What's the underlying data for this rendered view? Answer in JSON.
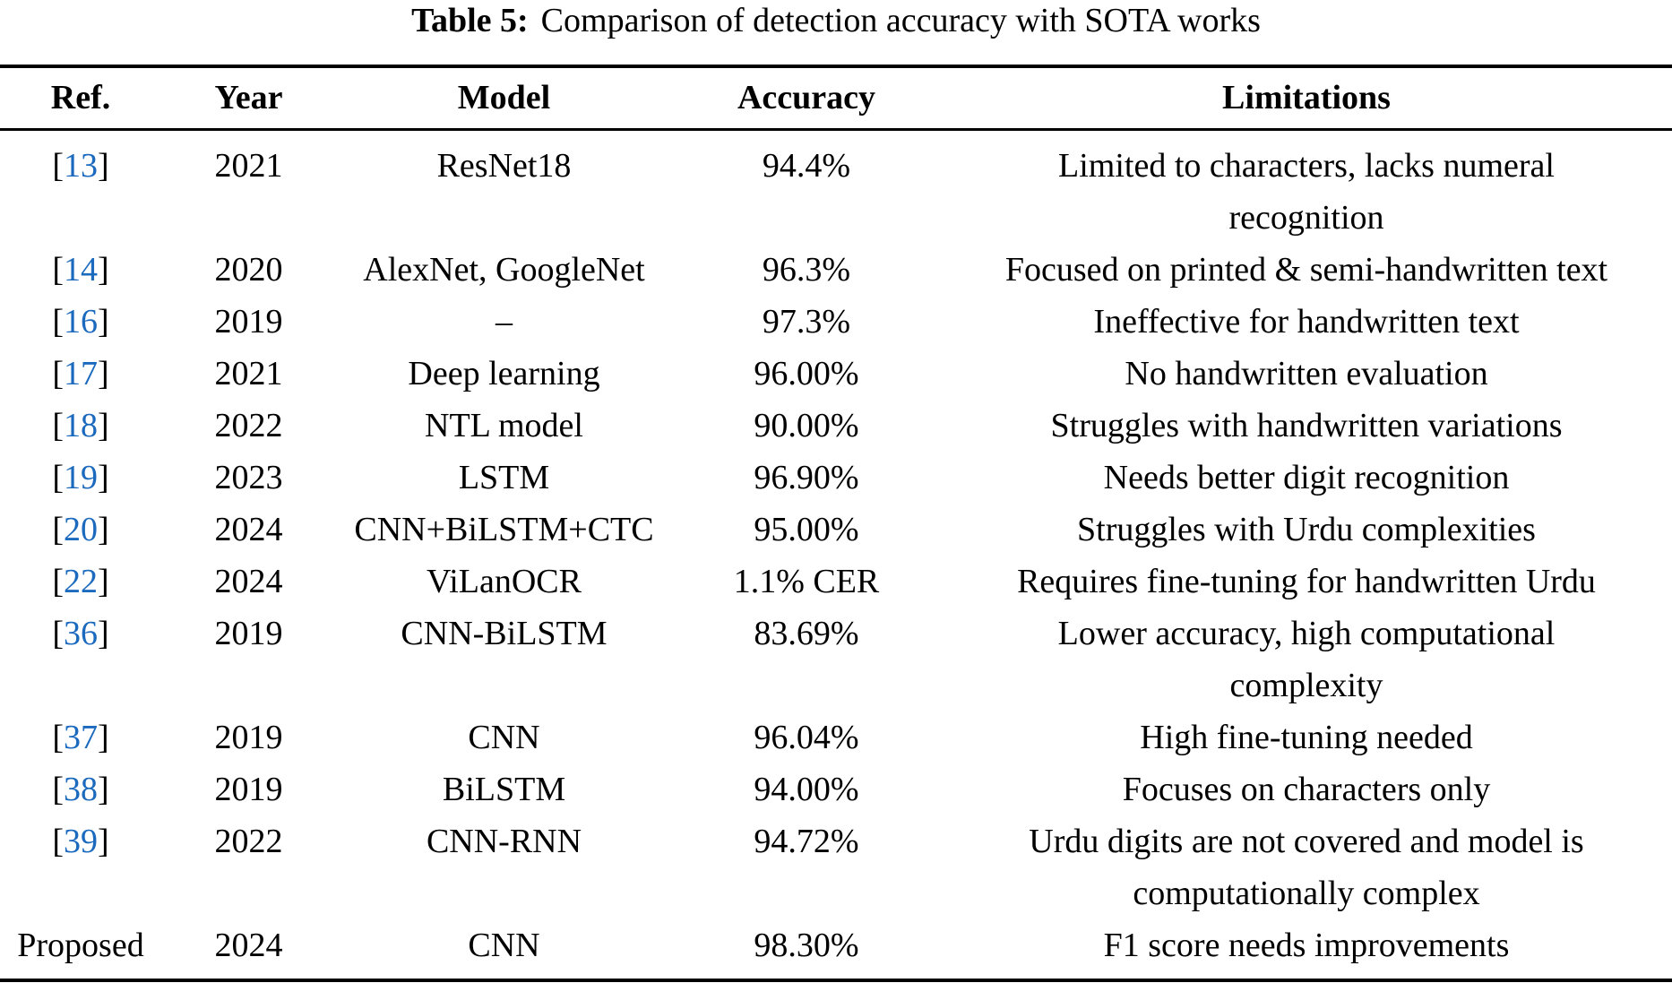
{
  "caption": {
    "label": "Table 5:",
    "text": "Comparison of detection accuracy with SOTA works"
  },
  "table": {
    "citation_brackets": {
      "open": "[",
      "close": "]"
    },
    "columns": [
      {
        "key": "ref",
        "label": "Ref."
      },
      {
        "key": "year",
        "label": "Year"
      },
      {
        "key": "model",
        "label": "Model"
      },
      {
        "key": "accuracy",
        "label": "Accuracy"
      },
      {
        "key": "limitations",
        "label": "Limitations"
      }
    ],
    "rows": [
      {
        "ref": "13",
        "ref_is_citation": true,
        "year": "2021",
        "model": "ResNet18",
        "accuracy": "94.4%",
        "limitations": "Limited to characters, lacks numeral\nrecognition"
      },
      {
        "ref": "14",
        "ref_is_citation": true,
        "year": "2020",
        "model": "AlexNet, GoogleNet",
        "accuracy": "96.3%",
        "limitations": "Focused on printed & semi-handwritten text"
      },
      {
        "ref": "16",
        "ref_is_citation": true,
        "year": "2019",
        "model": "–",
        "accuracy": "97.3%",
        "limitations": "Ineffective for handwritten text"
      },
      {
        "ref": "17",
        "ref_is_citation": true,
        "year": "2021",
        "model": "Deep learning",
        "accuracy": "96.00%",
        "limitations": "No handwritten evaluation"
      },
      {
        "ref": "18",
        "ref_is_citation": true,
        "year": "2022",
        "model": "NTL model",
        "accuracy": "90.00%",
        "limitations": "Struggles with handwritten variations"
      },
      {
        "ref": "19",
        "ref_is_citation": true,
        "year": "2023",
        "model": "LSTM",
        "accuracy": "96.90%",
        "limitations": "Needs better digit recognition"
      },
      {
        "ref": "20",
        "ref_is_citation": true,
        "year": "2024",
        "model": "CNN+BiLSTM+CTC",
        "accuracy": "95.00%",
        "limitations": "Struggles with Urdu complexities"
      },
      {
        "ref": "22",
        "ref_is_citation": true,
        "year": "2024",
        "model": "ViLanOCR",
        "accuracy": "1.1% CER",
        "limitations": "Requires fine-tuning for handwritten Urdu"
      },
      {
        "ref": "36",
        "ref_is_citation": true,
        "year": "2019",
        "model": "CNN-BiLSTM",
        "accuracy": "83.69%",
        "limitations": "Lower accuracy, high computational\ncomplexity"
      },
      {
        "ref": "37",
        "ref_is_citation": true,
        "year": "2019",
        "model": "CNN",
        "accuracy": "96.04%",
        "limitations": "High fine-tuning needed"
      },
      {
        "ref": "38",
        "ref_is_citation": true,
        "year": "2019",
        "model": "BiLSTM",
        "accuracy": "94.00%",
        "limitations": "Focuses on characters only"
      },
      {
        "ref": "39",
        "ref_is_citation": true,
        "year": "2022",
        "model": "CNN-RNN",
        "accuracy": "94.72%",
        "limitations": "Urdu digits are not covered and model is\ncomputationally complex"
      },
      {
        "ref": "Proposed",
        "ref_is_citation": false,
        "year": "2024",
        "model": "CNN",
        "accuracy": "98.30%",
        "limitations": "F1 score needs improvements"
      }
    ]
  },
  "colors": {
    "citation_link": "#1c6abe",
    "text": "#000000",
    "rule": "#000000",
    "background": "#ffffff"
  }
}
